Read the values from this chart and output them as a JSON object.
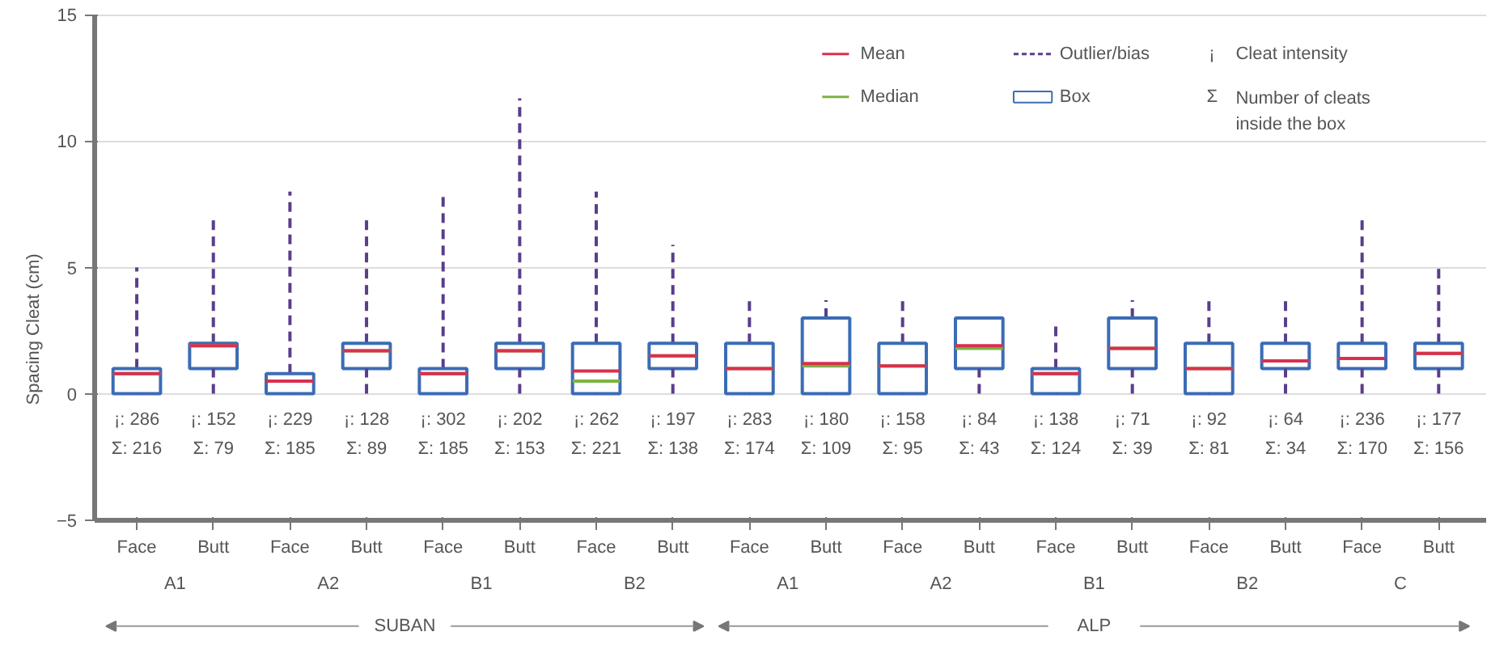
{
  "chart_data": {
    "type": "box",
    "ylabel": "Spacing Cleat (cm)",
    "ylim": [
      -5,
      15
    ],
    "yticks": [
      -5,
      0,
      5,
      10,
      15
    ],
    "grid": "y",
    "categories": [
      "Face",
      "Butt",
      "Face",
      "Butt",
      "Face",
      "Butt",
      "Face",
      "Butt",
      "Face",
      "Butt",
      "Face",
      "Butt",
      "Face",
      "Butt",
      "Face",
      "Butt",
      "Face",
      "Butt"
    ],
    "series": [
      {
        "color": "#3b6cb5",
        "boxes": [
          {
            "low": 0,
            "q1": 0,
            "median": 0.8,
            "q3": 1,
            "high": 5,
            "mean": 0.8
          },
          {
            "low": 0,
            "q1": 1,
            "median": 1.9,
            "q3": 2,
            "high": 7,
            "mean": 1.9
          },
          {
            "low": 0,
            "q1": 0,
            "median": 0.5,
            "q3": 0.8,
            "high": 8,
            "mean": 0.5
          },
          {
            "low": 0,
            "q1": 1,
            "median": 1.7,
            "q3": 2,
            "high": 7,
            "mean": 1.7
          },
          {
            "low": 0,
            "q1": 0,
            "median": 0.8,
            "q3": 1,
            "high": 8,
            "mean": 0.8
          },
          {
            "low": 0,
            "q1": 1,
            "median": 1.7,
            "q3": 2,
            "high": 11.7,
            "mean": 1.7
          },
          {
            "low": 0,
            "q1": 0,
            "median": 0.5,
            "q3": 2,
            "high": 8,
            "mean": 0.9
          },
          {
            "low": 0,
            "q1": 1,
            "median": 1.5,
            "q3": 2,
            "high": 5.9,
            "mean": 1.5
          },
          {
            "low": 0,
            "q1": 0,
            "median": 1,
            "q3": 2,
            "high": 3.8,
            "mean": 1
          },
          {
            "low": 0,
            "q1": 0,
            "median": 1.1,
            "q3": 3,
            "high": 3.7,
            "mean": 1.2
          },
          {
            "low": 0,
            "q1": 0,
            "median": 1.1,
            "q3": 2,
            "high": 3.8,
            "mean": 1.1
          },
          {
            "low": 0,
            "q1": 1,
            "median": 1.8,
            "q3": 3,
            "high": 3,
            "mean": 1.9
          },
          {
            "low": 0,
            "q1": 0,
            "median": 0.8,
            "q3": 1,
            "high": 2.9,
            "mean": 0.8
          },
          {
            "low": 0,
            "q1": 1,
            "median": 1.8,
            "q3": 3,
            "high": 3.7,
            "mean": 1.8
          },
          {
            "low": 0,
            "q1": 0,
            "median": 1,
            "q3": 2,
            "high": 3.7,
            "mean": 1
          },
          {
            "low": 0,
            "q1": 1,
            "median": 1.3,
            "q3": 2,
            "high": 3.7,
            "mean": 1.3
          },
          {
            "low": 0,
            "q1": 1,
            "median": 1.4,
            "q3": 2,
            "high": 7,
            "mean": 1.4
          },
          {
            "low": 0,
            "q1": 1,
            "median": 1.6,
            "q3": 2,
            "high": 5,
            "mean": 1.6
          }
        ]
      }
    ],
    "annotations": [
      "¡: 286",
      "Σ: 216",
      "¡: 152",
      "Σ: 79",
      "¡: 229",
      "Σ: 185",
      "¡: 128",
      "Σ: 89",
      "¡: 302",
      "Σ: 185",
      "¡: 202",
      "Σ: 153",
      "¡: 262",
      "Σ: 221",
      "¡: 197",
      "Σ: 138",
      "¡: 283",
      "Σ: 174",
      "¡: 180",
      "Σ: 109",
      "¡: 158",
      "Σ: 95",
      "¡: 84",
      "Σ: 43",
      "¡: 138",
      "Σ: 124",
      "¡: 71",
      "Σ: 39",
      "¡: 92",
      "Σ: 81",
      "¡: 64",
      "Σ: 34",
      "¡: 236",
      "Σ: 170",
      "¡: 177",
      "Σ: 156",
      "A1",
      "A2",
      "B1",
      "B2",
      "A1",
      "A2",
      "B1",
      "B2",
      "C",
      "SUBAN",
      "ALP",
      "Mean",
      "Median",
      "Outlier/bias",
      "Box",
      "¡",
      "Cleat intensity",
      "Σ",
      "Number of cleats inside the box"
    ]
  }
}
